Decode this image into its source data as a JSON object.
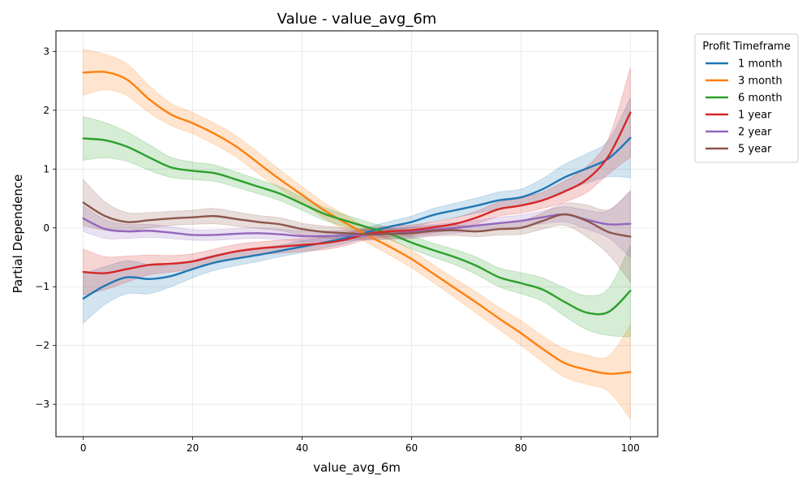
{
  "chart_data": {
    "type": "line",
    "title": "Value - value_avg_6m",
    "xlabel": "value_avg_6m",
    "ylabel": "Partial Dependence",
    "xlim": [
      -5,
      105
    ],
    "ylim": [
      -3.55,
      3.35
    ],
    "xticks": [
      0,
      20,
      40,
      60,
      80,
      100
    ],
    "yticks": [
      -3,
      -2,
      -1,
      0,
      1,
      2,
      3
    ],
    "grid": true,
    "legend": {
      "title": "Profit Timeframe",
      "placement": "outside-right"
    },
    "x": [
      0,
      4,
      8,
      12,
      16,
      20,
      24,
      28,
      32,
      36,
      40,
      44,
      48,
      52,
      56,
      60,
      64,
      68,
      72,
      76,
      80,
      84,
      88,
      92,
      96,
      100
    ],
    "series": [
      {
        "name": "1 month",
        "color": "#1f77b4",
        "values": [
          -1.2,
          -0.98,
          -0.84,
          -0.87,
          -0.82,
          -0.7,
          -0.59,
          -0.52,
          -0.46,
          -0.39,
          -0.32,
          -0.25,
          -0.17,
          -0.07,
          0.02,
          0.1,
          0.22,
          0.3,
          0.38,
          0.47,
          0.52,
          0.66,
          0.86,
          1.01,
          1.18,
          1.53
        ],
        "lower": [
          -1.62,
          -1.3,
          -1.12,
          -1.12,
          -1.0,
          -0.85,
          -0.72,
          -0.64,
          -0.57,
          -0.49,
          -0.42,
          -0.34,
          -0.26,
          -0.15,
          -0.07,
          0.0,
          0.11,
          0.18,
          0.25,
          0.33,
          0.38,
          0.48,
          0.64,
          0.76,
          0.87,
          0.85
        ],
        "upper": [
          -0.78,
          -0.66,
          -0.56,
          -0.62,
          -0.64,
          -0.55,
          -0.46,
          -0.4,
          -0.35,
          -0.29,
          -0.22,
          -0.16,
          -0.08,
          0.01,
          0.11,
          0.2,
          0.33,
          0.42,
          0.51,
          0.61,
          0.66,
          0.84,
          1.08,
          1.26,
          1.49,
          2.21
        ]
      },
      {
        "name": "3 month",
        "color": "#ff7f0e",
        "values": [
          2.64,
          2.65,
          2.52,
          2.19,
          1.93,
          1.78,
          1.6,
          1.38,
          1.1,
          0.82,
          0.56,
          0.3,
          0.08,
          -0.13,
          -0.32,
          -0.53,
          -0.78,
          -1.03,
          -1.28,
          -1.54,
          -1.79,
          -2.06,
          -2.3,
          -2.41,
          -2.48,
          -2.45
        ],
        "lower": [
          2.25,
          2.35,
          2.25,
          1.96,
          1.74,
          1.6,
          1.42,
          1.2,
          0.92,
          0.66,
          0.42,
          0.17,
          -0.05,
          -0.26,
          -0.46,
          -0.68,
          -0.93,
          -1.19,
          -1.46,
          -1.73,
          -2.0,
          -2.28,
          -2.54,
          -2.66,
          -2.78,
          -3.25
        ],
        "upper": [
          3.04,
          2.95,
          2.79,
          2.42,
          2.12,
          1.96,
          1.78,
          1.56,
          1.28,
          0.98,
          0.7,
          0.43,
          0.21,
          0.0,
          -0.18,
          -0.38,
          -0.63,
          -0.87,
          -1.1,
          -1.35,
          -1.58,
          -1.84,
          -2.06,
          -2.16,
          -2.18,
          -1.65
        ]
      },
      {
        "name": "6 month",
        "color": "#2ca02c",
        "values": [
          1.52,
          1.49,
          1.38,
          1.2,
          1.03,
          0.97,
          0.93,
          0.82,
          0.7,
          0.58,
          0.41,
          0.24,
          0.12,
          0.01,
          -0.1,
          -0.25,
          -0.38,
          -0.5,
          -0.65,
          -0.84,
          -0.94,
          -1.05,
          -1.26,
          -1.44,
          -1.43,
          -1.07
        ],
        "lower": [
          1.15,
          1.19,
          1.13,
          0.98,
          0.86,
          0.82,
          0.79,
          0.69,
          0.58,
          0.46,
          0.3,
          0.13,
          0.02,
          -0.08,
          -0.2,
          -0.36,
          -0.5,
          -0.63,
          -0.8,
          -1.0,
          -1.12,
          -1.25,
          -1.5,
          -1.73,
          -1.83,
          -1.85
        ],
        "upper": [
          1.89,
          1.79,
          1.63,
          1.42,
          1.2,
          1.12,
          1.07,
          0.95,
          0.82,
          0.7,
          0.52,
          0.35,
          0.22,
          0.1,
          0.0,
          -0.14,
          -0.26,
          -0.37,
          -0.5,
          -0.68,
          -0.76,
          -0.85,
          -1.02,
          -1.15,
          -1.03,
          -0.29
        ]
      },
      {
        "name": "1 year",
        "color": "#d62728",
        "values": [
          -0.75,
          -0.77,
          -0.7,
          -0.63,
          -0.61,
          -0.57,
          -0.48,
          -0.4,
          -0.35,
          -0.32,
          -0.29,
          -0.26,
          -0.2,
          -0.1,
          -0.06,
          -0.04,
          0.01,
          0.07,
          0.18,
          0.32,
          0.38,
          0.47,
          0.62,
          0.82,
          1.22,
          1.96
        ],
        "lower": [
          -1.14,
          -1.05,
          -0.92,
          -0.8,
          -0.75,
          -0.7,
          -0.6,
          -0.52,
          -0.46,
          -0.43,
          -0.4,
          -0.37,
          -0.3,
          -0.19,
          -0.15,
          -0.13,
          -0.08,
          -0.03,
          0.07,
          0.2,
          0.25,
          0.33,
          0.44,
          0.6,
          0.92,
          1.2
        ],
        "upper": [
          -0.36,
          -0.49,
          -0.48,
          -0.46,
          -0.47,
          -0.44,
          -0.36,
          -0.28,
          -0.24,
          -0.21,
          -0.18,
          -0.15,
          -0.1,
          -0.01,
          0.03,
          0.05,
          0.1,
          0.17,
          0.29,
          0.44,
          0.51,
          0.61,
          0.8,
          1.04,
          1.52,
          2.72
        ]
      },
      {
        "name": "2 year",
        "color": "#9467bd",
        "values": [
          0.16,
          -0.02,
          -0.06,
          -0.05,
          -0.08,
          -0.12,
          -0.12,
          -0.1,
          -0.09,
          -0.11,
          -0.14,
          -0.14,
          -0.13,
          -0.12,
          -0.1,
          -0.07,
          -0.03,
          0.0,
          0.04,
          0.08,
          0.12,
          0.18,
          0.23,
          0.14,
          0.06,
          0.07
        ],
        "lower": [
          -0.06,
          -0.18,
          -0.18,
          -0.16,
          -0.18,
          -0.21,
          -0.21,
          -0.19,
          -0.18,
          -0.2,
          -0.23,
          -0.23,
          -0.22,
          -0.21,
          -0.19,
          -0.16,
          -0.12,
          -0.09,
          -0.05,
          -0.02,
          0.02,
          0.07,
          0.1,
          -0.02,
          -0.17,
          -0.5
        ],
        "upper": [
          0.38,
          0.14,
          0.06,
          0.06,
          0.02,
          -0.03,
          -0.03,
          -0.01,
          0.0,
          -0.02,
          -0.05,
          -0.05,
          -0.04,
          -0.03,
          -0.01,
          0.02,
          0.06,
          0.09,
          0.13,
          0.18,
          0.22,
          0.29,
          0.36,
          0.3,
          0.29,
          0.64
        ]
      },
      {
        "name": "5 year",
        "color": "#8c564b",
        "values": [
          0.43,
          0.2,
          0.1,
          0.13,
          0.16,
          0.18,
          0.2,
          0.15,
          0.1,
          0.06,
          -0.02,
          -0.07,
          -0.09,
          -0.11,
          -0.1,
          -0.09,
          -0.05,
          -0.04,
          -0.06,
          -0.02,
          0.0,
          0.12,
          0.23,
          0.12,
          -0.07,
          -0.15
        ],
        "lower": [
          0.04,
          -0.04,
          -0.06,
          0.0,
          0.04,
          0.06,
          0.07,
          0.03,
          -0.01,
          -0.05,
          -0.12,
          -0.17,
          -0.18,
          -0.2,
          -0.19,
          -0.18,
          -0.14,
          -0.13,
          -0.15,
          -0.12,
          -0.11,
          -0.02,
          0.04,
          -0.15,
          -0.45,
          -0.92
        ],
        "upper": [
          0.82,
          0.44,
          0.26,
          0.26,
          0.28,
          0.3,
          0.33,
          0.27,
          0.21,
          0.17,
          0.08,
          0.03,
          0.0,
          -0.02,
          -0.01,
          0.0,
          0.04,
          0.05,
          0.03,
          0.08,
          0.11,
          0.26,
          0.42,
          0.39,
          0.31,
          0.62
        ]
      }
    ]
  }
}
